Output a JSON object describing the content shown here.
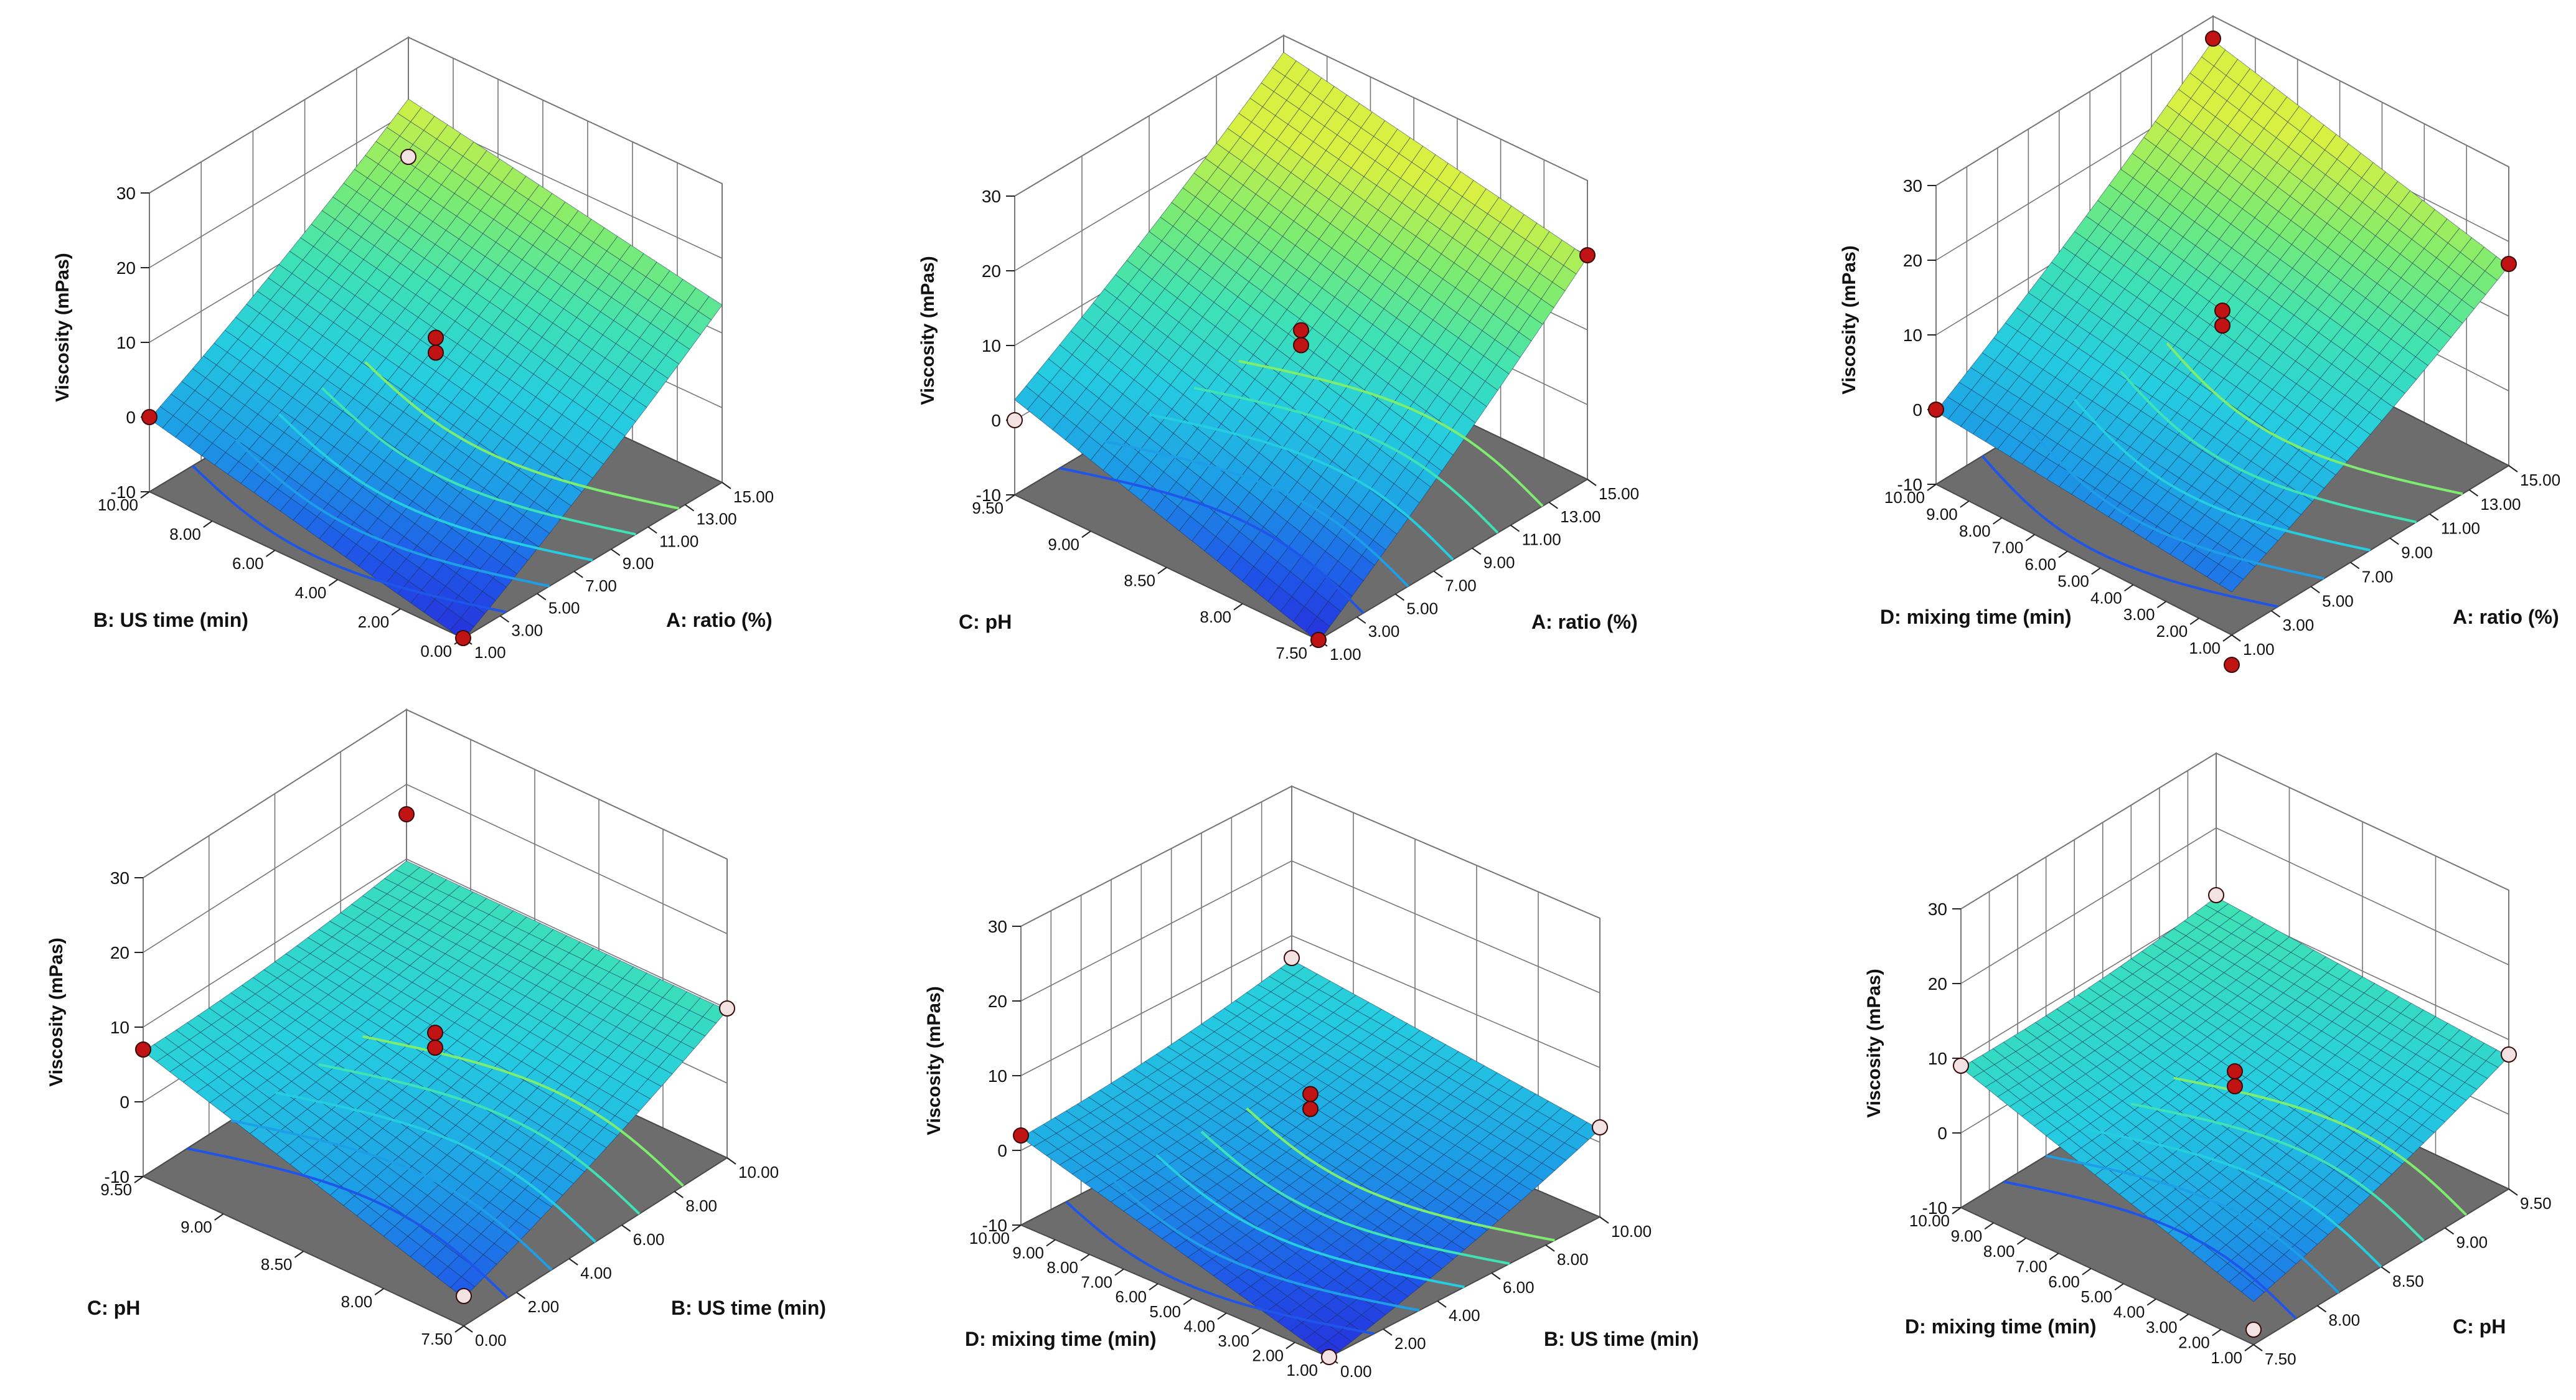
{
  "colors": {
    "floor": "#6d6d6d",
    "grid": "#777777",
    "mesh": "#1d2f55",
    "design_point": "#c01414",
    "design_point_light": "#f3e2e2",
    "colormap": [
      "#2a1fd6",
      "#1f55e8",
      "#1d9ee6",
      "#25cde0",
      "#3fe2b4",
      "#7eec6f",
      "#d8f042"
    ]
  },
  "chart_data": [
    {
      "type": "surface3d",
      "id": "a-b",
      "zlabel": "Viscosity (mPas)",
      "zticks": [
        -10,
        0,
        10,
        20,
        30
      ],
      "xlabel": "A: ratio (%)",
      "xticks": [
        "1.00",
        "3.00",
        "5.00",
        "7.00",
        "9.00",
        "11.00",
        "13.00",
        "15.00"
      ],
      "ylabel": "B: US time (min)",
      "yticks": [
        "0.00",
        "2.00",
        "4.00",
        "6.00",
        "8.00",
        "10.00"
      ],
      "corner_values": [
        -10,
        14,
        0,
        22
      ],
      "design_points": [
        {
          "x": 0,
          "y": 0,
          "z": -10,
          "style": "red"
        },
        {
          "x": 1,
          "y": 1,
          "z": 14,
          "style": "light"
        },
        {
          "x": 0,
          "y": 1,
          "z": 0,
          "style": "red"
        },
        {
          "x": 0.5,
          "y": 0.5,
          "z": 8,
          "style": "red"
        },
        {
          "x": 0.5,
          "y": 0.5,
          "z": 10,
          "style": "red"
        }
      ]
    },
    {
      "type": "surface3d",
      "id": "a-c",
      "zlabel": "Viscosity (mPas)",
      "zticks": [
        -10,
        0,
        10,
        20,
        30
      ],
      "xlabel": "A: ratio (%)",
      "xticks": [
        "1.00",
        "3.00",
        "5.00",
        "7.00",
        "9.00",
        "11.00",
        "13.00",
        "15.00"
      ],
      "ylabel": "C: pH",
      "yticks": [
        "7.50",
        "8.00",
        "8.50",
        "9.00",
        "9.50"
      ],
      "corner_values": [
        -10,
        20,
        3,
        28
      ],
      "design_points": [
        {
          "x": 0,
          "y": 0,
          "z": -10,
          "style": "red"
        },
        {
          "x": 1,
          "y": 0,
          "z": 20,
          "style": "red"
        },
        {
          "x": 0,
          "y": 1,
          "z": 0,
          "style": "light"
        },
        {
          "x": 0.5,
          "y": 0.5,
          "z": 9,
          "style": "red"
        },
        {
          "x": 0.5,
          "y": 0.5,
          "z": 11,
          "style": "red"
        }
      ]
    },
    {
      "type": "surface3d",
      "id": "a-d",
      "zlabel": "Viscosity (mPas)",
      "zticks": [
        -10,
        0,
        10,
        20,
        30
      ],
      "xlabel": "A: ratio (%)",
      "xticks": [
        "1.00",
        "3.00",
        "5.00",
        "7.00",
        "9.00",
        "11.00",
        "13.00",
        "15.00"
      ],
      "ylabel": "D: mixing time (min)",
      "yticks": [
        "1.00",
        "2.00",
        "3.00",
        "4.00",
        "5.00",
        "6.00",
        "7.00",
        "8.00",
        "9.00",
        "10.00"
      ],
      "corner_values": [
        -4,
        17,
        0,
        27
      ],
      "design_points": [
        {
          "x": 0,
          "y": 0,
          "z": -14,
          "style": "red"
        },
        {
          "x": 1,
          "y": 0,
          "z": 17,
          "style": "red"
        },
        {
          "x": 0,
          "y": 1,
          "z": 0,
          "style": "red"
        },
        {
          "x": 1,
          "y": 1,
          "z": 27,
          "style": "red"
        },
        {
          "x": 0.5,
          "y": 0.5,
          "z": 10,
          "style": "red"
        },
        {
          "x": 0.5,
          "y": 0.5,
          "z": 12,
          "style": "red"
        }
      ]
    },
    {
      "type": "surface3d",
      "id": "b-c",
      "zlabel": "Viscosity (mPas)",
      "zticks": [
        -10,
        0,
        10,
        20,
        30
      ],
      "xlabel": "B: US time (min)",
      "xticks": [
        "0.00",
        "2.00",
        "4.00",
        "6.00",
        "8.00",
        "10.00"
      ],
      "ylabel": "C: pH",
      "yticks": [
        "7.50",
        "8.00",
        "8.50",
        "9.00",
        "9.50"
      ],
      "corner_values": [
        -6,
        10,
        7,
        10
      ],
      "design_points": [
        {
          "x": 0,
          "y": 0,
          "z": -6,
          "style": "light"
        },
        {
          "x": 1,
          "y": 0,
          "z": 10,
          "style": "light"
        },
        {
          "x": 0,
          "y": 1,
          "z": 7,
          "style": "red"
        },
        {
          "x": 1,
          "y": 1,
          "z": 16,
          "style": "red"
        },
        {
          "x": 0.5,
          "y": 0.5,
          "z": 6,
          "style": "red"
        },
        {
          "x": 0.5,
          "y": 0.5,
          "z": 8,
          "style": "red"
        }
      ]
    },
    {
      "type": "surface3d",
      "id": "b-d",
      "zlabel": "Viscosity (mPas)",
      "zticks": [
        -10,
        0,
        10,
        20,
        30
      ],
      "xlabel": "B: US time (min)",
      "xticks": [
        "0.00",
        "2.00",
        "4.00",
        "6.00",
        "8.00",
        "10.00"
      ],
      "ylabel": "D: mixing time (min)",
      "yticks": [
        "1.00",
        "2.00",
        "3.00",
        "4.00",
        "5.00",
        "6.00",
        "7.00",
        "8.00",
        "9.00",
        "10.00"
      ],
      "corner_values": [
        -10,
        2,
        2,
        7
      ],
      "design_points": [
        {
          "x": 0,
          "y": 0,
          "z": -10,
          "style": "light"
        },
        {
          "x": 1,
          "y": 0,
          "z": 2,
          "style": "light"
        },
        {
          "x": 0,
          "y": 1,
          "z": 2,
          "style": "red"
        },
        {
          "x": 1,
          "y": 1,
          "z": 7,
          "style": "light"
        },
        {
          "x": 0.5,
          "y": 0.5,
          "z": 5,
          "style": "red"
        },
        {
          "x": 0.5,
          "y": 0.5,
          "z": 7,
          "style": "red"
        }
      ]
    },
    {
      "type": "surface3d",
      "id": "c-d",
      "zlabel": "Viscosity (mPas)",
      "zticks": [
        -10,
        0,
        10,
        20,
        30
      ],
      "xlabel": "C: pH",
      "xticks": [
        "7.50",
        "8.00",
        "8.50",
        "9.00",
        "9.50"
      ],
      "ylabel": "D: mixing time (min)",
      "yticks": [
        "1.00",
        "2.00",
        "3.00",
        "4.00",
        "5.00",
        "6.00",
        "7.00",
        "8.00",
        "9.00",
        "10.00"
      ],
      "corner_values": [
        -4,
        8,
        9,
        11
      ],
      "design_points": [
        {
          "x": 0,
          "y": 0,
          "z": -8,
          "style": "light"
        },
        {
          "x": 1,
          "y": 0,
          "z": 8,
          "style": "light"
        },
        {
          "x": 0,
          "y": 1,
          "z": 9,
          "style": "light"
        },
        {
          "x": 1,
          "y": 1,
          "z": 11,
          "style": "light"
        },
        {
          "x": 0.5,
          "y": 0.5,
          "z": 5,
          "style": "red"
        },
        {
          "x": 0.5,
          "y": 0.5,
          "z": 7,
          "style": "red"
        }
      ]
    }
  ]
}
